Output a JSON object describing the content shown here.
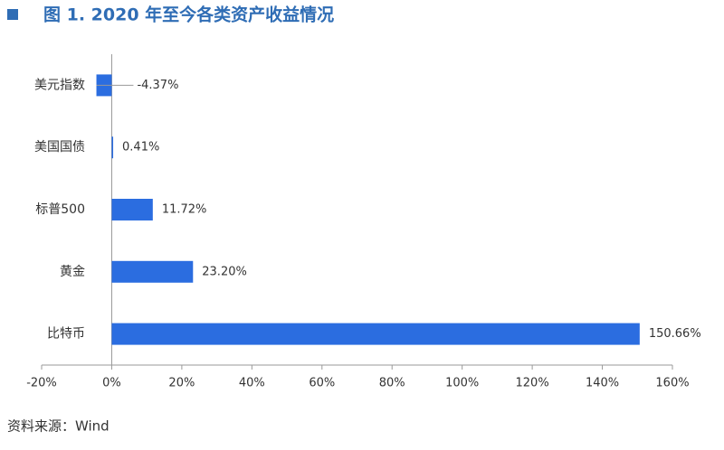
{
  "chart_data": {
    "type": "barh",
    "title": "图 1. 2020 年至今各类资产收益情况",
    "source": "资料来源：Wind",
    "categories": [
      "美元指数",
      "美国国债",
      "标普500",
      "黄金",
      "比特币"
    ],
    "values": [
      -4.37,
      0.41,
      11.72,
      23.2,
      150.66
    ],
    "value_labels": [
      "-4.37%",
      "0.41%",
      "11.72%",
      "23.20%",
      "150.66%"
    ],
    "color": "#2b6de0",
    "xlim": [
      -20,
      160
    ],
    "xticks": [
      {
        "value": -20,
        "label": "-20%"
      },
      {
        "value": 0,
        "label": "0%"
      },
      {
        "value": 20,
        "label": "20%"
      },
      {
        "value": 40,
        "label": "40%"
      },
      {
        "value": 60,
        "label": "60%"
      },
      {
        "value": 80,
        "label": "80%"
      },
      {
        "value": 100,
        "label": "100%"
      },
      {
        "value": 120,
        "label": "120%"
      },
      {
        "value": 140,
        "label": "140%"
      },
      {
        "value": 160,
        "label": "160%"
      }
    ],
    "grid": false
  }
}
